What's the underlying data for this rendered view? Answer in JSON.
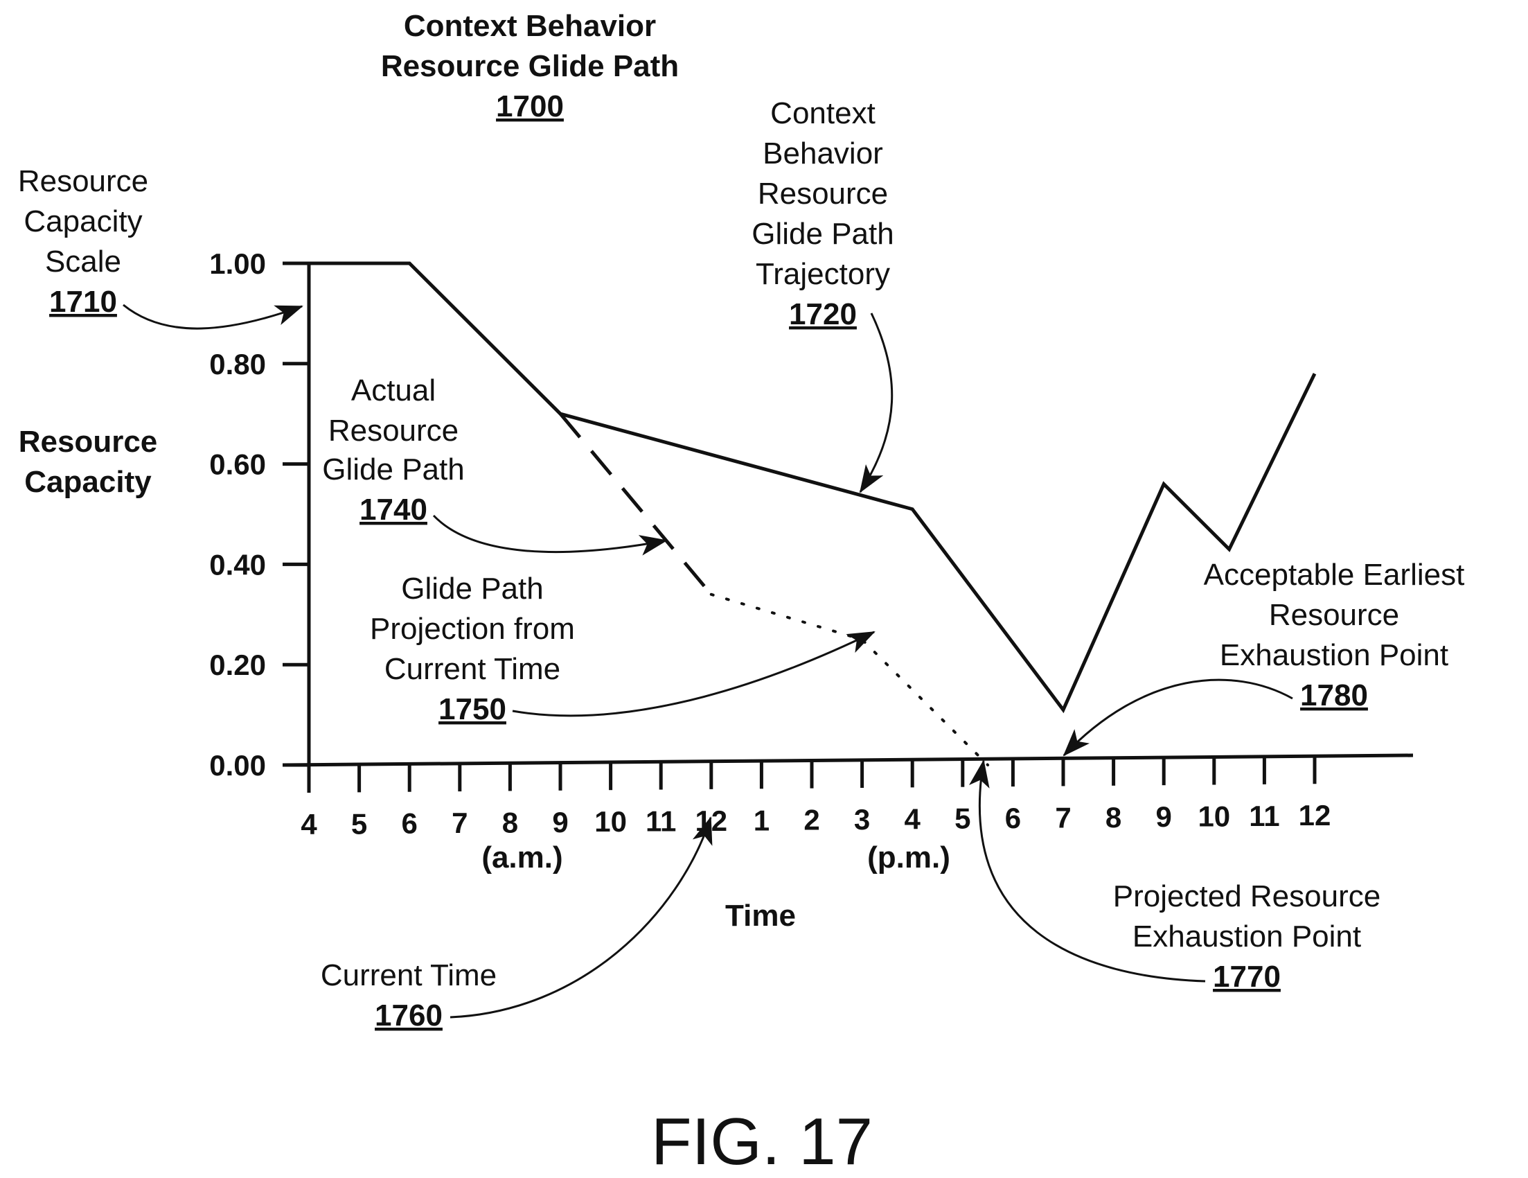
{
  "figure": {
    "title_line1": "Context Behavior",
    "title_line2": "Resource Glide Path",
    "title_ref": "1700",
    "fig_label": "FIG. 17"
  },
  "axes": {
    "ylabel_line1": "Resource",
    "ylabel_line2": "Capacity",
    "xlabel": "Time",
    "am_label": "(a.m.)",
    "pm_label": "(p.m.)"
  },
  "annotations": {
    "scale": {
      "lines": [
        "Resource",
        "Capacity",
        "Scale"
      ],
      "ref": "1710"
    },
    "trajectory": {
      "lines": [
        "Context",
        "Behavior",
        "Resource",
        "Glide Path",
        "Trajectory"
      ],
      "ref": "1720"
    },
    "actual": {
      "lines": [
        "Actual",
        "Resource",
        "Glide Path"
      ],
      "ref": "1740"
    },
    "projection": {
      "lines": [
        "Glide Path",
        "Projection from",
        "Current Time"
      ],
      "ref": "1750"
    },
    "current_time": {
      "lines": [
        "Current Time"
      ],
      "ref": "1760"
    },
    "projected_exhaustion": {
      "lines": [
        "Projected Resource",
        "Exhaustion Point"
      ],
      "ref": "1770"
    },
    "acceptable_exhaustion": {
      "lines": [
        "Acceptable Earliest",
        "Resource",
        "Exhaustion Point"
      ],
      "ref": "1780"
    }
  },
  "chart_data": {
    "type": "line",
    "title": "Context Behavior Resource Glide Path",
    "xlabel": "Time",
    "ylabel": "Resource Capacity",
    "ylim": [
      0,
      1
    ],
    "xlim": [
      4,
      26
    ],
    "yticks": [
      "0.00",
      "0.20",
      "0.40",
      "0.60",
      "0.80",
      "1.00"
    ],
    "ytick_values": [
      0,
      0.2,
      0.4,
      0.6,
      0.8,
      1.0
    ],
    "xtick_values": [
      4,
      5,
      6,
      7,
      8,
      9,
      10,
      11,
      12,
      13,
      14,
      15,
      16,
      17,
      18,
      19,
      20,
      21,
      22,
      23,
      24
    ],
    "xtick_labels": [
      "4",
      "5",
      "6",
      "7",
      "8",
      "9",
      "10",
      "11",
      "12",
      "1",
      "2",
      "3",
      "4",
      "5",
      "6",
      "7",
      "8",
      "9",
      "10",
      "11",
      "12"
    ],
    "grid": false,
    "series": [
      {
        "ref": "1720",
        "style": "solid",
        "color": "#111111",
        "points": [
          [
            4,
            1.0
          ],
          [
            6,
            1.0
          ],
          [
            9,
            0.7
          ],
          [
            16,
            0.51
          ],
          [
            19,
            0.11
          ],
          [
            21,
            0.56
          ],
          [
            22.3,
            0.43
          ],
          [
            24,
            0.78
          ]
        ]
      },
      {
        "ref": "1740",
        "style": "dashed",
        "color": "#111111",
        "points": [
          [
            9,
            0.7
          ],
          [
            12,
            0.34
          ]
        ]
      },
      {
        "ref": "1750",
        "style": "dotted",
        "color": "#111111",
        "points": [
          [
            12,
            0.34
          ],
          [
            15,
            0.25
          ],
          [
            17.5,
            0.0
          ]
        ]
      }
    ],
    "markers": {
      "current_time_x": 12,
      "projected_exhaustion_x": 17.5,
      "acceptable_exhaustion_x": 19
    }
  }
}
